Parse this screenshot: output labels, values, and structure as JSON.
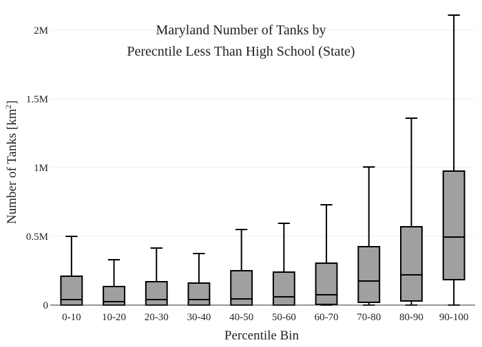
{
  "chart_data": {
    "type": "box",
    "title_lines": [
      "Maryland Number of Tanks by",
      "Perecntile Less Than High School (State)"
    ],
    "xlabel": "Percentile Bin",
    "ylabel_main": "Number of Tanks  [km",
    "ylabel_sup": "2",
    "ylabel_close": "]",
    "ylim": [
      0,
      2150000
    ],
    "y_ticks": [
      {
        "value": 0,
        "label": "0"
      },
      {
        "value": 500000,
        "label": "0.5M"
      },
      {
        "value": 1000000,
        "label": "1M"
      },
      {
        "value": 1500000,
        "label": "1.5M"
      },
      {
        "value": 2000000,
        "label": "2M"
      }
    ],
    "grid": true,
    "box_fill": "#a0a0a0",
    "line_color": "#000000",
    "categories": [
      "0-10",
      "10-20",
      "20-30",
      "30-40",
      "40-50",
      "50-60",
      "60-70",
      "70-80",
      "80-90",
      "90-100"
    ],
    "boxes": [
      {
        "min": 0,
        "q1": 0,
        "median": 40000,
        "q3": 210000,
        "max": 500000
      },
      {
        "min": 0,
        "q1": 0,
        "median": 25000,
        "q3": 135000,
        "max": 330000
      },
      {
        "min": 0,
        "q1": 0,
        "median": 40000,
        "q3": 170000,
        "max": 415000
      },
      {
        "min": 0,
        "q1": 0,
        "median": 40000,
        "q3": 160000,
        "max": 375000
      },
      {
        "min": 0,
        "q1": 0,
        "median": 45000,
        "q3": 250000,
        "max": 550000
      },
      {
        "min": 0,
        "q1": 0,
        "median": 60000,
        "q3": 240000,
        "max": 595000
      },
      {
        "min": 0,
        "q1": 5000,
        "median": 75000,
        "q3": 305000,
        "max": 730000
      },
      {
        "min": 0,
        "q1": 20000,
        "median": 175000,
        "q3": 425000,
        "max": 1005000
      },
      {
        "min": 0,
        "q1": 30000,
        "median": 220000,
        "q3": 570000,
        "max": 1360000
      },
      {
        "min": 0,
        "q1": 185000,
        "median": 495000,
        "q3": 975000,
        "max": 2110000
      }
    ]
  }
}
